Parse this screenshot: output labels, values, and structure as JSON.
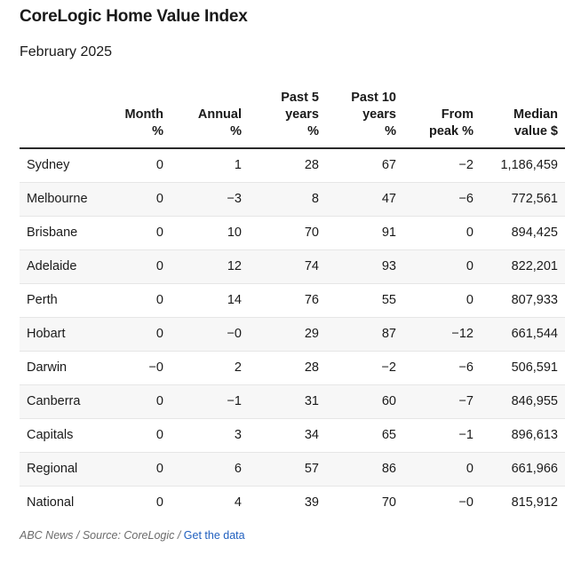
{
  "title": "CoreLogic Home Value Index",
  "subtitle": "February 2025",
  "headers": [
    [
      "",
      ""
    ],
    [
      "Month",
      "%"
    ],
    [
      "Annual",
      "%"
    ],
    [
      "Past 5",
      "years",
      "%"
    ],
    [
      "Past 10",
      "years",
      "%"
    ],
    [
      "From",
      "peak %"
    ],
    [
      "Median",
      "value $"
    ]
  ],
  "rows": [
    [
      "Sydney",
      "0",
      "1",
      "28",
      "67",
      "−2",
      "1,186,459"
    ],
    [
      "Melbourne",
      "0",
      "−3",
      "8",
      "47",
      "−6",
      "772,561"
    ],
    [
      "Brisbane",
      "0",
      "10",
      "70",
      "91",
      "0",
      "894,425"
    ],
    [
      "Adelaide",
      "0",
      "12",
      "74",
      "93",
      "0",
      "822,201"
    ],
    [
      "Perth",
      "0",
      "14",
      "76",
      "55",
      "0",
      "807,933"
    ],
    [
      "Hobart",
      "0",
      "−0",
      "29",
      "87",
      "−12",
      "661,544"
    ],
    [
      "Darwin",
      "−0",
      "2",
      "28",
      "−2",
      "−6",
      "506,591"
    ],
    [
      "Canberra",
      "0",
      "−1",
      "31",
      "60",
      "−7",
      "846,955"
    ],
    [
      "Capitals",
      "0",
      "3",
      "34",
      "65",
      "−1",
      "896,613"
    ],
    [
      "Regional",
      "0",
      "6",
      "57",
      "86",
      "0",
      "661,966"
    ],
    [
      "National",
      "0",
      "4",
      "39",
      "70",
      "−0",
      "815,912"
    ]
  ],
  "footer": {
    "source": "ABC News / Source: CoreLogic / ",
    "link": "Get the data"
  }
}
